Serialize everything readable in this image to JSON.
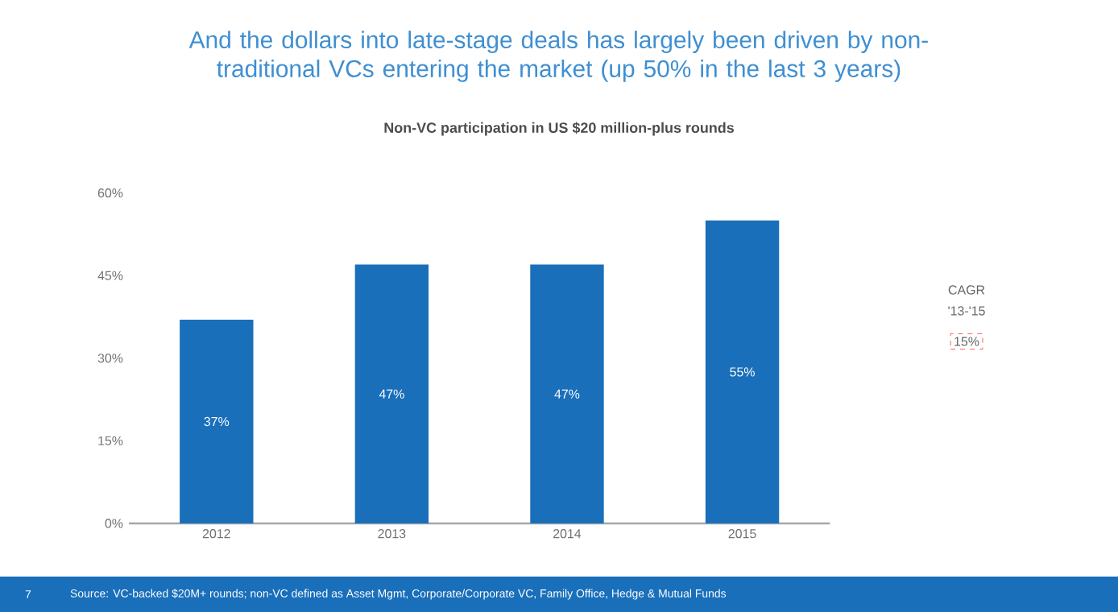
{
  "chart_data": {
    "type": "bar",
    "title": "And the dollars into late-stage deals has largely been driven by non-traditional VCs entering the market (up 50% in the last 3 years)",
    "subtitle": "Non-VC participation in US $20 million-plus rounds",
    "categories": [
      "2012",
      "2013",
      "2014",
      "2015"
    ],
    "values": [
      37,
      47,
      47,
      55
    ],
    "value_labels": [
      "37%",
      "47%",
      "47%",
      "55%"
    ],
    "color": "#1a6fba",
    "ylim": [
      0,
      60
    ],
    "yticks": [
      {
        "value": 0,
        "label": "0%"
      },
      {
        "value": 15,
        "label": "15%"
      },
      {
        "value": 30,
        "label": "30%"
      },
      {
        "value": 45,
        "label": "45%"
      },
      {
        "value": 60,
        "label": "60%"
      }
    ],
    "annotations": [
      "CAGR",
      "'13-'15",
      "15%",
      "Source: VC-backed $20M+ rounds; non-VC defined as Asset Mgmt, Corporate/Corporate VC, Family Office, Hedge & Mutual Funds",
      "7"
    ]
  }
}
